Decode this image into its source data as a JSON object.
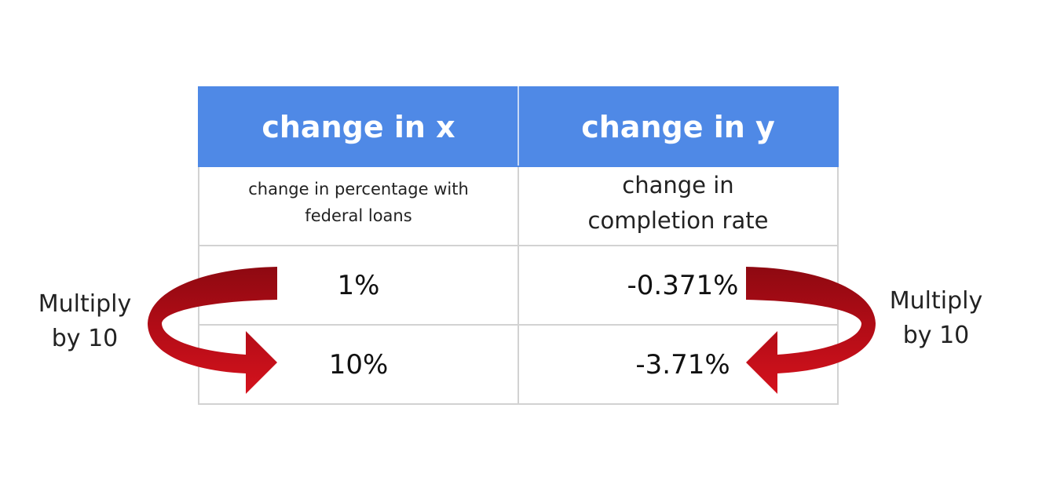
{
  "table": {
    "headers": [
      "change in x",
      "change in y"
    ],
    "descriptions": [
      "change in percentage with federal loans",
      "change in completion rate"
    ],
    "rows": [
      [
        "1%",
        "-0.371%"
      ],
      [
        "10%",
        "-3.71%"
      ]
    ]
  },
  "annotations": {
    "left": "Multiply by 10",
    "right": "Multiply by 10"
  },
  "colors": {
    "header_bg": "#4f89e6",
    "header_text": "#ffffff",
    "arrow_dark": "#9b0a12",
    "arrow_bright": "#d5121d",
    "grid": "#d2d2d2"
  }
}
